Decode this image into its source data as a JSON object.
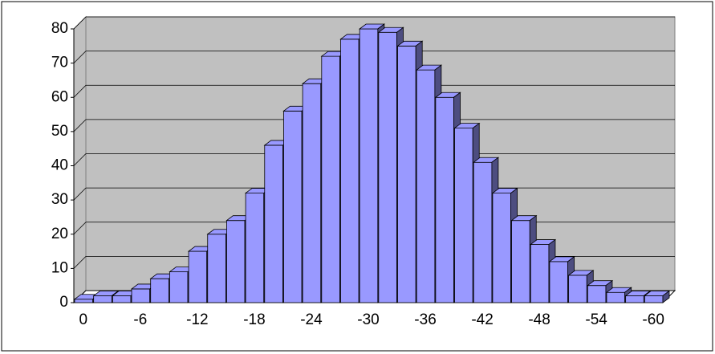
{
  "chart_data": {
    "type": "bar3d",
    "categories": [
      "0",
      null,
      null,
      "-6",
      null,
      null,
      "-12",
      null,
      null,
      "-18",
      null,
      null,
      "-24",
      null,
      null,
      "-30",
      null,
      null,
      "-36",
      null,
      null,
      "-42",
      null,
      null,
      "-48",
      null,
      null,
      "-54",
      null,
      null,
      "-60"
    ],
    "values": [
      1,
      2,
      2,
      4,
      7,
      9,
      15,
      20,
      24,
      32,
      46,
      56,
      64,
      72,
      77,
      80,
      79,
      75,
      68,
      60,
      51,
      41,
      32,
      24,
      17,
      12,
      8,
      5,
      3,
      2,
      2
    ],
    "color": "#9999ff",
    "ylim": [
      0,
      80
    ],
    "yticks": [
      0,
      10,
      20,
      30,
      40,
      50,
      60,
      70,
      80
    ],
    "grid": true
  }
}
